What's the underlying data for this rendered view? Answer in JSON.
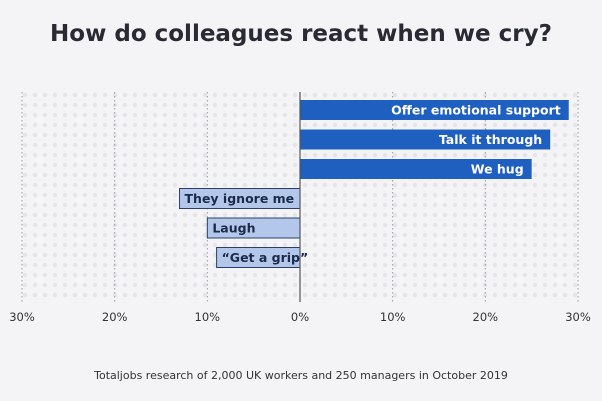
{
  "chart_data": {
    "type": "bar",
    "orientation": "horizontal",
    "title": "How do colleagues react when we cry?",
    "categories": [
      "Offer emotional support",
      "Talk it through",
      "We hug",
      "They ignore me",
      "Laugh",
      "“Get a grip”"
    ],
    "values": [
      29,
      27,
      25,
      -13,
      -10,
      -9
    ],
    "xlim": [
      -30,
      30
    ],
    "x_ticks": [
      -30,
      -20,
      -10,
      0,
      10,
      20,
      30
    ],
    "x_tick_labels": [
      "30%",
      "20%",
      "10%",
      "0%",
      "10%",
      "20%",
      "30%"
    ],
    "grid": true,
    "source": "Totaljobs research of 2,000 UK workers and 250 managers in October 2019"
  },
  "colors": {
    "positive_bar": "#1f5fbf",
    "negative_bar": "#b3c7ea",
    "negative_label": "#1b2a4a",
    "positive_label": "#ffffff",
    "grid_line": "#9a9aa6",
    "zero_line": "#555555"
  }
}
